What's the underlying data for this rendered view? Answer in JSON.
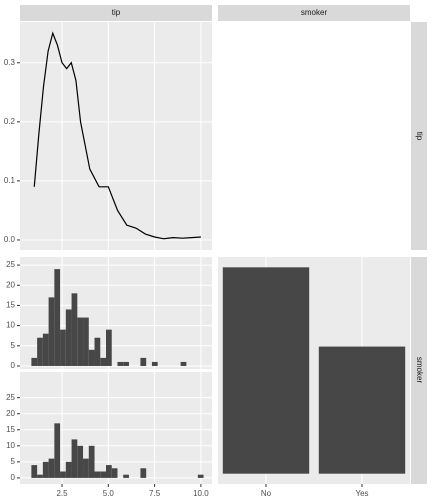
{
  "strips": {
    "columns": [
      "tip",
      "smoker"
    ],
    "rows": [
      "tip",
      "smoker"
    ]
  },
  "chart_data": [
    {
      "type": "line",
      "color": "#000000",
      "x": [
        1.0,
        1.25,
        1.5,
        1.75,
        2.0,
        2.25,
        2.5,
        2.75,
        3.0,
        3.25,
        3.5,
        4.0,
        4.5,
        5.0,
        5.5,
        6.0,
        6.5,
        7.0,
        7.5,
        8.0,
        8.5,
        9.0,
        9.5,
        10.0
      ],
      "values": [
        0.09,
        0.18,
        0.26,
        0.32,
        0.35,
        0.33,
        0.3,
        0.29,
        0.3,
        0.27,
        0.2,
        0.12,
        0.09,
        0.09,
        0.05,
        0.025,
        0.02,
        0.01,
        0.005,
        0.002,
        0.004,
        0.003,
        0.004,
        0.005
      ],
      "xlim": [
        0.23,
        10.6
      ],
      "ylim": [
        -0.017,
        0.369
      ],
      "yticks": [
        {
          "value": 0,
          "label": "0.0"
        },
        0.1,
        0.2,
        0.3
      ]
    },
    {
      "type": "histogram",
      "color": "#474747",
      "bins": [
        0.845,
        1.155,
        1.465,
        1.775,
        2.085,
        2.395,
        2.705,
        3.015,
        3.325,
        3.635,
        3.945,
        4.255,
        4.565,
        4.875,
        5.185,
        5.495,
        5.805,
        6.115,
        6.425,
        6.735,
        7.045,
        7.355,
        7.665,
        7.975,
        8.285,
        8.595,
        8.905,
        9.215,
        9.525,
        9.835,
        10.145
      ],
      "values": [
        2,
        7,
        8,
        17,
        24,
        9,
        14,
        18,
        12,
        12,
        4,
        7,
        2,
        9,
        0,
        1,
        1,
        0,
        0,
        2,
        0,
        1,
        0,
        0,
        0,
        0,
        1,
        0,
        0,
        0
      ],
      "xlim": [
        0.23,
        10.6
      ],
      "ylim": [
        -0.75,
        27
      ],
      "yticks": [
        0,
        5,
        10,
        15,
        20,
        25
      ]
    },
    {
      "type": "histogram",
      "color": "#474747",
      "bins": [
        0.845,
        1.155,
        1.465,
        1.775,
        2.085,
        2.395,
        2.705,
        3.015,
        3.325,
        3.635,
        3.945,
        4.255,
        4.565,
        4.875,
        5.185,
        5.495,
        5.805,
        6.115,
        6.425,
        6.735,
        7.045,
        7.355,
        7.665,
        7.975,
        8.285,
        8.595,
        8.905,
        9.215,
        9.525,
        9.835,
        10.145
      ],
      "values": [
        4,
        1,
        5,
        6,
        17,
        2,
        5,
        12,
        10,
        6,
        10,
        2,
        2,
        4,
        3,
        0,
        1,
        0,
        0,
        3,
        0,
        0,
        0,
        0,
        0,
        0,
        0,
        0,
        0,
        1
      ],
      "xlim": [
        0.23,
        10.6
      ],
      "ylim": [
        -1.9,
        33
      ],
      "yticks": [
        0,
        5,
        10,
        15,
        20,
        25
      ],
      "xticks": [
        {
          "value": 2.5,
          "label": "2.5"
        },
        {
          "value": 5,
          "label": "5.0"
        },
        {
          "value": 7.5,
          "label": "7.5"
        },
        {
          "value": 10,
          "label": "10.0"
        }
      ]
    },
    {
      "type": "bar",
      "color": "#474747",
      "categories": [
        "No",
        "Yes"
      ],
      "values": [
        151,
        93
      ],
      "ylim": [
        -7.55,
        158.55
      ]
    }
  ]
}
